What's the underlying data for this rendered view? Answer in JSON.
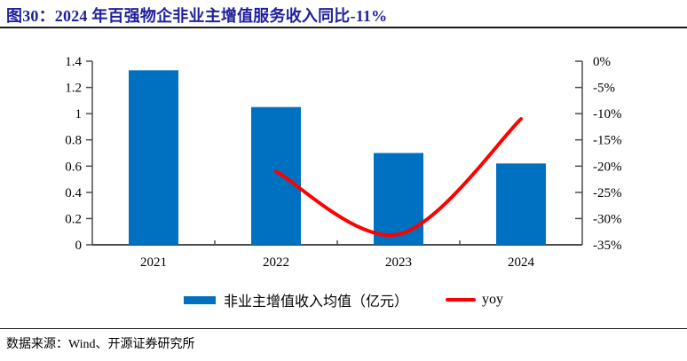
{
  "title": "图30：2024 年百强物企非业主增值服务收入同比-11%",
  "footer": {
    "source": "数据来源：Wind、开源证券研究所"
  },
  "legend": {
    "bar": "非业主增值收入均值（亿元）",
    "line": "yoy"
  },
  "colors": {
    "bar": "#0070C0",
    "line": "#FE0000",
    "title": "#1F1F9C",
    "axis": "#4D4D4D",
    "text": "#000000",
    "divider": "#1A1A1A"
  },
  "chart_data": {
    "type": "bar",
    "subtype": "combo-bar-line-dual-axis",
    "title": "2024 年百强物企非业主增值服务收入同比-11%",
    "categories": [
      "2021",
      "2022",
      "2023",
      "2024"
    ],
    "series": [
      {
        "name": "非业主增值收入均值（亿元）",
        "type": "bar",
        "axis": "left",
        "values": [
          1.33,
          1.05,
          0.7,
          0.62
        ]
      },
      {
        "name": "yoy",
        "type": "line",
        "axis": "right",
        "unit": "%",
        "values": [
          null,
          -21,
          -33,
          -11
        ]
      }
    ],
    "left_axis": {
      "max": 1.4,
      "min": 0,
      "step": 0.2,
      "ticks": [
        "1.4",
        "1.2",
        "1",
        "0.8",
        "0.6",
        "0.4",
        "0.2",
        "0"
      ]
    },
    "right_axis": {
      "max": 0,
      "min": -35,
      "step": 5,
      "ticks": [
        "0%",
        "-5%",
        "-10%",
        "-15%",
        "-20%",
        "-25%",
        "-30%",
        "-35%"
      ]
    },
    "legend_position": "bottom",
    "grid": false
  }
}
